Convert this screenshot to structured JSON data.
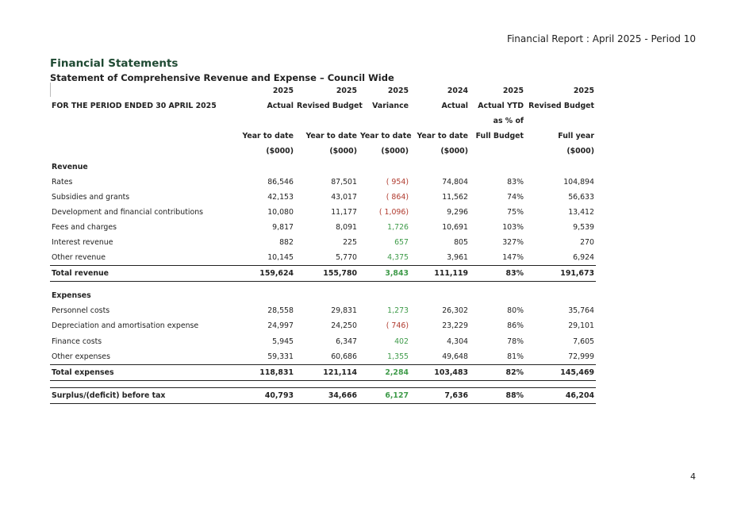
{
  "report_header": "Financial Report :  April 2025 - Period 10",
  "title": "Financial Statements",
  "subtitle": "Statement of Comprehensive Revenue and Expense – Council Wide",
  "header_rows": [
    [
      "",
      "2025",
      "2025",
      "2025",
      "2024",
      "2025",
      "2025"
    ],
    [
      "FOR THE PERIOD ENDED 30 APRIL 2025",
      "Actual",
      "Revised Budget",
      "Variance",
      "Actual",
      "Actual YTD",
      "Revised Budget"
    ],
    [
      "",
      "",
      "",
      "",
      "",
      "as % of",
      ""
    ],
    [
      "",
      "Year to date",
      "Year to date",
      "Year to date",
      "Year to date",
      "Full Budget",
      "Full year"
    ],
    [
      "",
      "($000)",
      "($000)",
      "($000)",
      "($000)",
      "",
      "($000)"
    ]
  ],
  "revenue": {
    "heading": "Revenue",
    "rows": [
      {
        "label": "Rates",
        "actual": "86,546",
        "budget": "87,501",
        "variance": "( 954)",
        "variance_sign": "neg",
        "prior": "74,804",
        "pct": "83%",
        "full": "104,894"
      },
      {
        "label": "Subsidies and grants",
        "actual": "42,153",
        "budget": "43,017",
        "variance": "( 864)",
        "variance_sign": "neg",
        "prior": "11,562",
        "pct": "74%",
        "full": "56,633"
      },
      {
        "label": "Development and financial contributions",
        "actual": "10,080",
        "budget": "11,177",
        "variance": "( 1,096)",
        "variance_sign": "neg",
        "prior": "9,296",
        "pct": "75%",
        "full": "13,412"
      },
      {
        "label": "Fees and charges",
        "actual": "9,817",
        "budget": "8,091",
        "variance": "1,726",
        "variance_sign": "pos",
        "prior": "10,691",
        "pct": "103%",
        "full": "9,539"
      },
      {
        "label": "Interest revenue",
        "actual": "882",
        "budget": "225",
        "variance": "657",
        "variance_sign": "pos",
        "prior": "805",
        "pct": "327%",
        "full": "270"
      },
      {
        "label": "Other revenue",
        "actual": "10,145",
        "budget": "5,770",
        "variance": "4,375",
        "variance_sign": "pos",
        "prior": "3,961",
        "pct": "147%",
        "full": "6,924"
      }
    ],
    "total": {
      "label": "Total revenue",
      "actual": "159,624",
      "budget": "155,780",
      "variance": "3,843",
      "variance_sign": "pos",
      "prior": "111,119",
      "pct": "83%",
      "full": "191,673"
    }
  },
  "expenses": {
    "heading": "Expenses",
    "rows": [
      {
        "label": "Personnel costs",
        "actual": "28,558",
        "budget": "29,831",
        "variance": "1,273",
        "variance_sign": "pos",
        "prior": "26,302",
        "pct": "80%",
        "full": "35,764"
      },
      {
        "label": "Depreciation and amortisation expense",
        "actual": "24,997",
        "budget": "24,250",
        "variance": "( 746)",
        "variance_sign": "neg",
        "prior": "23,229",
        "pct": "86%",
        "full": "29,101"
      },
      {
        "label": "Finance costs",
        "actual": "5,945",
        "budget": "6,347",
        "variance": "402",
        "variance_sign": "pos",
        "prior": "4,304",
        "pct": "78%",
        "full": "7,605"
      },
      {
        "label": "Other expenses",
        "actual": "59,331",
        "budget": "60,686",
        "variance": "1,355",
        "variance_sign": "pos",
        "prior": "49,648",
        "pct": "81%",
        "full": "72,999"
      }
    ],
    "total": {
      "label": "Total expenses",
      "actual": "118,831",
      "budget": "121,114",
      "variance": "2,284",
      "variance_sign": "pos",
      "prior": "103,483",
      "pct": "82%",
      "full": "145,469"
    }
  },
  "surplus": {
    "label": "Surplus/(deficit) before tax",
    "actual": "40,793",
    "budget": "34,666",
    "variance": "6,127",
    "variance_sign": "pos",
    "prior": "7,636",
    "pct": "88%",
    "full": "46,204"
  },
  "page_number": "4",
  "colors": {
    "title": "#1f4a33",
    "negative": "#b03a2e",
    "positive": "#3f9b4a"
  }
}
